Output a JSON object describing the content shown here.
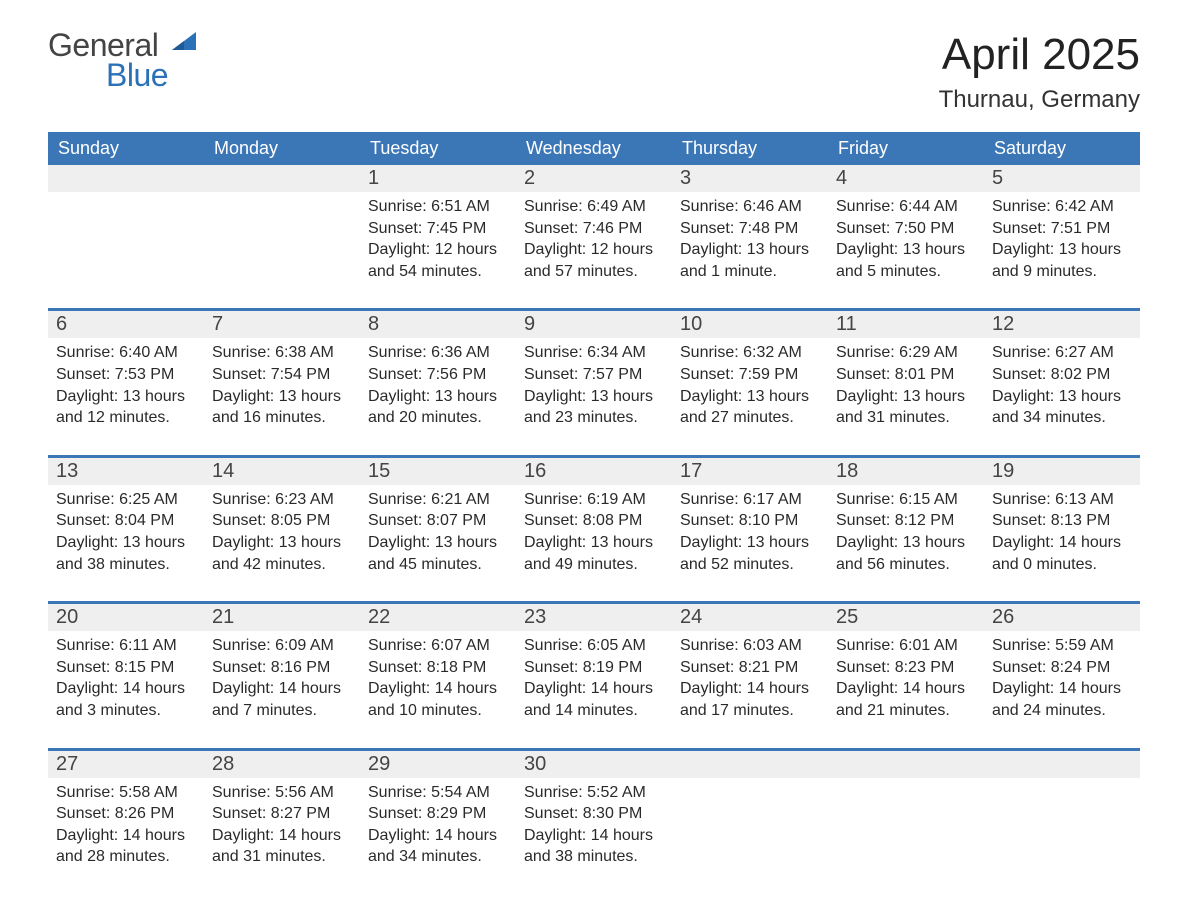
{
  "logo": {
    "general": "General",
    "blue": "Blue"
  },
  "title": "April 2025",
  "location": "Thurnau, Germany",
  "colors": {
    "header_bg": "#3b77b7",
    "header_text": "#ffffff",
    "daynum_bg": "#efefef",
    "row_border": "#3b77b7",
    "logo_blue": "#2b71b8",
    "logo_gray": "#444444",
    "page_bg": "#ffffff",
    "body_text": "#2a2a2a"
  },
  "day_headers": [
    "Sunday",
    "Monday",
    "Tuesday",
    "Wednesday",
    "Thursday",
    "Friday",
    "Saturday"
  ],
  "weeks": [
    [
      null,
      null,
      {
        "n": "1",
        "sunrise": "6:51 AM",
        "sunset": "7:45 PM",
        "daylight": "12 hours and 54 minutes."
      },
      {
        "n": "2",
        "sunrise": "6:49 AM",
        "sunset": "7:46 PM",
        "daylight": "12 hours and 57 minutes."
      },
      {
        "n": "3",
        "sunrise": "6:46 AM",
        "sunset": "7:48 PM",
        "daylight": "13 hours and 1 minute."
      },
      {
        "n": "4",
        "sunrise": "6:44 AM",
        "sunset": "7:50 PM",
        "daylight": "13 hours and 5 minutes."
      },
      {
        "n": "5",
        "sunrise": "6:42 AM",
        "sunset": "7:51 PM",
        "daylight": "13 hours and 9 minutes."
      }
    ],
    [
      {
        "n": "6",
        "sunrise": "6:40 AM",
        "sunset": "7:53 PM",
        "daylight": "13 hours and 12 minutes."
      },
      {
        "n": "7",
        "sunrise": "6:38 AM",
        "sunset": "7:54 PM",
        "daylight": "13 hours and 16 minutes."
      },
      {
        "n": "8",
        "sunrise": "6:36 AM",
        "sunset": "7:56 PM",
        "daylight": "13 hours and 20 minutes."
      },
      {
        "n": "9",
        "sunrise": "6:34 AM",
        "sunset": "7:57 PM",
        "daylight": "13 hours and 23 minutes."
      },
      {
        "n": "10",
        "sunrise": "6:32 AM",
        "sunset": "7:59 PM",
        "daylight": "13 hours and 27 minutes."
      },
      {
        "n": "11",
        "sunrise": "6:29 AM",
        "sunset": "8:01 PM",
        "daylight": "13 hours and 31 minutes."
      },
      {
        "n": "12",
        "sunrise": "6:27 AM",
        "sunset": "8:02 PM",
        "daylight": "13 hours and 34 minutes."
      }
    ],
    [
      {
        "n": "13",
        "sunrise": "6:25 AM",
        "sunset": "8:04 PM",
        "daylight": "13 hours and 38 minutes."
      },
      {
        "n": "14",
        "sunrise": "6:23 AM",
        "sunset": "8:05 PM",
        "daylight": "13 hours and 42 minutes."
      },
      {
        "n": "15",
        "sunrise": "6:21 AM",
        "sunset": "8:07 PM",
        "daylight": "13 hours and 45 minutes."
      },
      {
        "n": "16",
        "sunrise": "6:19 AM",
        "sunset": "8:08 PM",
        "daylight": "13 hours and 49 minutes."
      },
      {
        "n": "17",
        "sunrise": "6:17 AM",
        "sunset": "8:10 PM",
        "daylight": "13 hours and 52 minutes."
      },
      {
        "n": "18",
        "sunrise": "6:15 AM",
        "sunset": "8:12 PM",
        "daylight": "13 hours and 56 minutes."
      },
      {
        "n": "19",
        "sunrise": "6:13 AM",
        "sunset": "8:13 PM",
        "daylight": "14 hours and 0 minutes."
      }
    ],
    [
      {
        "n": "20",
        "sunrise": "6:11 AM",
        "sunset": "8:15 PM",
        "daylight": "14 hours and 3 minutes."
      },
      {
        "n": "21",
        "sunrise": "6:09 AM",
        "sunset": "8:16 PM",
        "daylight": "14 hours and 7 minutes."
      },
      {
        "n": "22",
        "sunrise": "6:07 AM",
        "sunset": "8:18 PM",
        "daylight": "14 hours and 10 minutes."
      },
      {
        "n": "23",
        "sunrise": "6:05 AM",
        "sunset": "8:19 PM",
        "daylight": "14 hours and 14 minutes."
      },
      {
        "n": "24",
        "sunrise": "6:03 AM",
        "sunset": "8:21 PM",
        "daylight": "14 hours and 17 minutes."
      },
      {
        "n": "25",
        "sunrise": "6:01 AM",
        "sunset": "8:23 PM",
        "daylight": "14 hours and 21 minutes."
      },
      {
        "n": "26",
        "sunrise": "5:59 AM",
        "sunset": "8:24 PM",
        "daylight": "14 hours and 24 minutes."
      }
    ],
    [
      {
        "n": "27",
        "sunrise": "5:58 AM",
        "sunset": "8:26 PM",
        "daylight": "14 hours and 28 minutes."
      },
      {
        "n": "28",
        "sunrise": "5:56 AM",
        "sunset": "8:27 PM",
        "daylight": "14 hours and 31 minutes."
      },
      {
        "n": "29",
        "sunrise": "5:54 AM",
        "sunset": "8:29 PM",
        "daylight": "14 hours and 34 minutes."
      },
      {
        "n": "30",
        "sunrise": "5:52 AM",
        "sunset": "8:30 PM",
        "daylight": "14 hours and 38 minutes."
      },
      null,
      null,
      null
    ]
  ],
  "labels": {
    "sunrise": "Sunrise:",
    "sunset": "Sunset:",
    "daylight": "Daylight:"
  }
}
